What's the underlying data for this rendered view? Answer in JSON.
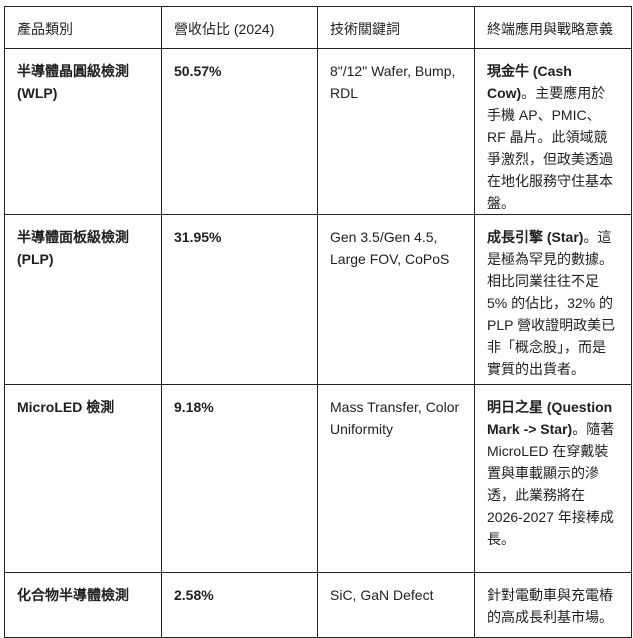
{
  "headers": [
    "產品類別",
    "營收佔比 (2024)",
    "技術關鍵詞",
    "終端應用與戰略意義"
  ],
  "rows": [
    {
      "category": "半導體晶圓級檢測 (WLP)",
      "share": "50.57%",
      "keywords": "8\"/12\" Wafer, Bump, RDL",
      "strategy_bold": "現金牛 (Cash Cow)",
      "strategy": "。主要應用於手機 AP、PMIC、RF 晶片。此領域競爭激烈，但政美透過在地化服務守住基本盤。"
    },
    {
      "category": "半導體面板級檢測 (PLP)",
      "share": "31.95%",
      "keywords": "Gen 3.5/Gen 4.5, Large FOV, CoPoS",
      "strategy_bold": "成長引擎 (Star)",
      "strategy": "。這是極為罕見的數據。相比同業往往不足 5% 的佔比，32% 的 PLP 營收證明政美已非「概念股」，而是實質的出貨者。"
    },
    {
      "category": "MicroLED 檢測",
      "share": "9.18%",
      "keywords": "Mass Transfer, Color Uniformity",
      "strategy_bold": "明日之星 (Question Mark -> Star)",
      "strategy": "。隨著 MicroLED 在穿戴裝置與車載顯示的滲透，此業務將在 2026-2027 年接棒成長。"
    },
    {
      "category": "化合物半導體檢測",
      "share": "2.58%",
      "keywords": "SiC, GaN Defect",
      "strategy_bold": "",
      "strategy": "針對電動車與充電樁的高成長利基市場。"
    }
  ]
}
